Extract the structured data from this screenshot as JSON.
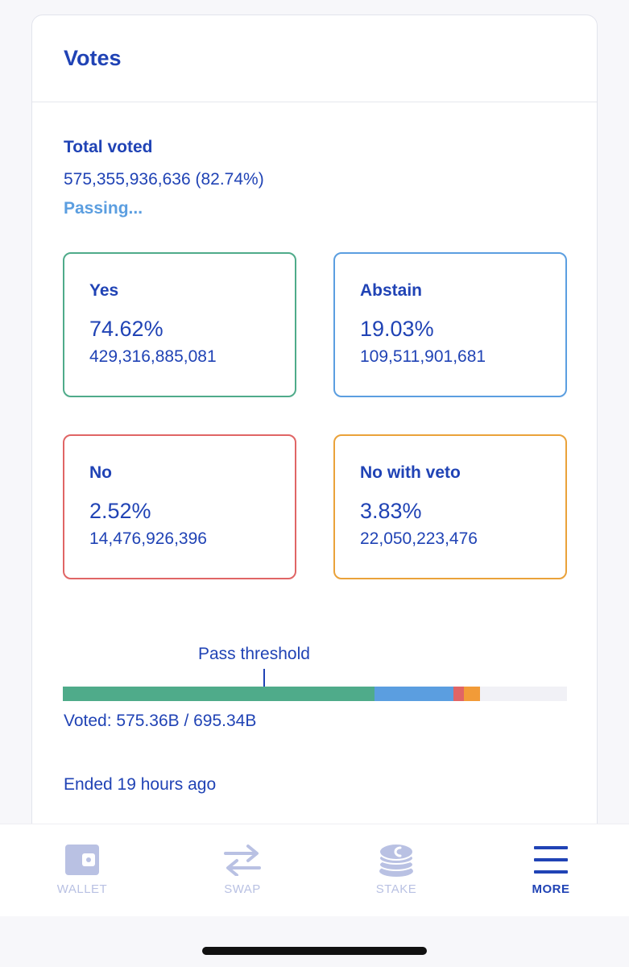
{
  "card": {
    "title": "Votes"
  },
  "summary": {
    "total_label": "Total voted",
    "total_value": "575,355,936,636 (82.74%)",
    "status": "Passing..."
  },
  "options": {
    "yes": {
      "label": "Yes",
      "percent": "74.62%",
      "amount": "429,316,885,081",
      "color": "#4fab8a"
    },
    "abstain": {
      "label": "Abstain",
      "percent": "19.03%",
      "amount": "109,511,901,681",
      "color": "#5b9ee0"
    },
    "no": {
      "label": "No",
      "percent": "2.52%",
      "amount": "14,476,926,396",
      "color": "#e06565"
    },
    "veto": {
      "label": "No with veto",
      "percent": "3.83%",
      "amount": "22,050,223,476",
      "color": "#eaa23a"
    }
  },
  "progress": {
    "threshold_label": "Pass threshold",
    "threshold_fraction": 0.4,
    "voted_text": "Voted: 575.36B / 695.34B",
    "total": 695.34,
    "segments": [
      {
        "name": "yes",
        "value": 429.32,
        "color": "#4fab8a"
      },
      {
        "name": "abstain",
        "value": 109.51,
        "color": "#5b9ee0"
      },
      {
        "name": "no",
        "value": 14.48,
        "color": "#e06565"
      },
      {
        "name": "veto",
        "value": 22.05,
        "color": "#f29b38"
      }
    ]
  },
  "ended_text": "Ended 19 hours ago",
  "tabbar": {
    "tabs": [
      {
        "label": "WALLET",
        "icon": "wallet-icon",
        "active": false
      },
      {
        "label": "SWAP",
        "icon": "swap-arrows-icon",
        "active": false
      },
      {
        "label": "STAKE",
        "icon": "stake-coins-icon",
        "active": false
      },
      {
        "label": "MORE",
        "icon": "hamburger-menu-icon",
        "active": true
      }
    ],
    "inactive_color": "#b9c1e3",
    "active_color": "#2043b5"
  }
}
